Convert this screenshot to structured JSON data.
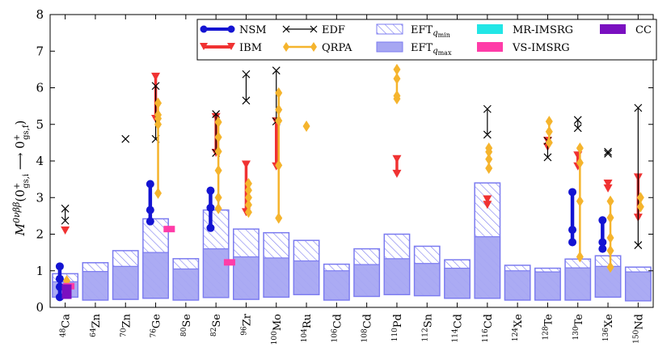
{
  "chart_data": {
    "type": "scatter",
    "title": "",
    "xlabel": "",
    "ylabel": "M^{0νββ}(0⁺gs,i → 0⁺gs,f)",
    "ylabel_parts": {
      "main": "M",
      "sup": "0νββ",
      "arg_open": "(0",
      "sup1": "+",
      "sub1": "gs,i",
      "arrow": " ⟶ 0",
      "sup2": "+",
      "sub2": "gs,f",
      "arg_close": ")"
    },
    "ylim": [
      0,
      8
    ],
    "yticks": [
      "0",
      "1",
      "2",
      "3",
      "4",
      "5",
      "6",
      "7",
      "8"
    ],
    "grid": false,
    "legend_position": "top-right",
    "colors": {
      "NSM": "#1414d2",
      "IBM": "#f03232",
      "EDF": "#000000",
      "QRPA": "#f5b42d",
      "EFT_box": "#7b7bf0",
      "EFT_fill": "#a7a7f2",
      "MR-IMSRG": "#22e6e6",
      "VS-IMSRG": "#ff3ca8",
      "CC": "#7a10c0"
    },
    "legend": [
      {
        "key": "NSM",
        "label": "NSM"
      },
      {
        "key": "IBM",
        "label": "IBM"
      },
      {
        "key": "EDF",
        "label": "EDF"
      },
      {
        "key": "QRPA",
        "label": "QRPA"
      },
      {
        "key": "EFTmin",
        "label": "EFT",
        "sub": "q",
        "subsub": "min"
      },
      {
        "key": "EFTmax",
        "label": "EFT",
        "sub": "q",
        "subsub": "max"
      },
      {
        "key": "MR-IMSRG",
        "label": "MR-IMSRG"
      },
      {
        "key": "VS-IMSRG",
        "label": "VS-IMSRG"
      },
      {
        "key": "CC",
        "label": "CC"
      }
    ],
    "categories": [
      {
        "mass": "48",
        "el": "Ca"
      },
      {
        "mass": "64",
        "el": "Zn"
      },
      {
        "mass": "70",
        "el": "Zn"
      },
      {
        "mass": "76",
        "el": "Ge"
      },
      {
        "mass": "80",
        "el": "Se"
      },
      {
        "mass": "82",
        "el": "Se"
      },
      {
        "mass": "96",
        "el": "Zr"
      },
      {
        "mass": "100",
        "el": "Mo"
      },
      {
        "mass": "104",
        "el": "Ru"
      },
      {
        "mass": "106",
        "el": "Cd"
      },
      {
        "mass": "108",
        "el": "Cd"
      },
      {
        "mass": "110",
        "el": "Pd"
      },
      {
        "mass": "112",
        "el": "Sn"
      },
      {
        "mass": "114",
        "el": "Cd"
      },
      {
        "mass": "116",
        "el": "Cd"
      },
      {
        "mass": "124",
        "el": "Xe"
      },
      {
        "mass": "128",
        "el": "Te"
      },
      {
        "mass": "130",
        "el": "Te"
      },
      {
        "mass": "136",
        "el": "Xe"
      },
      {
        "mass": "150",
        "el": "Nd"
      }
    ],
    "eft_qmin": [
      [
        0.28,
        0.92
      ],
      [
        0.2,
        1.22
      ],
      [
        0.22,
        1.55
      ],
      [
        0.25,
        2.42
      ],
      [
        0.2,
        1.33
      ],
      [
        0.27,
        2.66
      ],
      [
        0.22,
        2.14
      ],
      [
        0.28,
        2.04
      ],
      [
        0.35,
        1.83
      ],
      [
        0.2,
        1.18
      ],
      [
        0.3,
        1.6
      ],
      [
        0.35,
        2.0
      ],
      [
        0.32,
        1.67
      ],
      [
        0.25,
        1.3
      ],
      [
        0.25,
        3.4
      ],
      [
        0.2,
        1.15
      ],
      [
        0.2,
        1.07
      ],
      [
        0.2,
        1.32
      ],
      [
        0.28,
        1.41
      ],
      [
        0.18,
        1.1
      ]
    ],
    "eft_qmax": [
      [
        0.28,
        0.7
      ],
      [
        0.2,
        0.98
      ],
      [
        0.22,
        1.12
      ],
      [
        0.25,
        1.5
      ],
      [
        0.2,
        1.05
      ],
      [
        0.27,
        1.6
      ],
      [
        0.22,
        1.38
      ],
      [
        0.28,
        1.35
      ],
      [
        0.35,
        1.27
      ],
      [
        0.2,
        1.0
      ],
      [
        0.3,
        1.17
      ],
      [
        0.35,
        1.33
      ],
      [
        0.32,
        1.2
      ],
      [
        0.25,
        1.07
      ],
      [
        0.25,
        1.93
      ],
      [
        0.2,
        1.0
      ],
      [
        0.2,
        0.97
      ],
      [
        0.2,
        1.08
      ],
      [
        0.28,
        1.12
      ],
      [
        0.18,
        0.97
      ]
    ],
    "series": [
      {
        "name": "NSM",
        "points": [
          {
            "cat": 0,
            "off": -0.18,
            "values": [
              0.28,
              0.56,
              0.78,
              1.12
            ]
          },
          {
            "cat": 3,
            "off": -0.18,
            "values": [
              2.35,
              2.66,
              3.37
            ]
          },
          {
            "cat": 5,
            "off": -0.18,
            "values": [
              2.17,
              2.72,
              3.19
            ]
          },
          {
            "cat": 17,
            "off": -0.18,
            "values": [
              1.78,
              2.12,
              3.15
            ]
          },
          {
            "cat": 18,
            "off": -0.18,
            "values": [
              1.6,
              1.78,
              2.38
            ]
          }
        ]
      },
      {
        "name": "IBM",
        "points": [
          {
            "cat": 0,
            "off": 0.0,
            "values": [
              2.1
            ]
          },
          {
            "cat": 3,
            "off": 0.0,
            "values": [
              5.15,
              6.3
            ]
          },
          {
            "cat": 5,
            "off": 0.0,
            "values": [
              4.22,
              5.2
            ]
          },
          {
            "cat": 6,
            "off": 0.0,
            "values": [
              2.6,
              3.9
            ]
          },
          {
            "cat": 7,
            "off": 0.0,
            "values": [
              3.85,
              5.08
            ]
          },
          {
            "cat": 11,
            "off": 0.0,
            "values": [
              3.65,
              4.05
            ]
          },
          {
            "cat": 14,
            "off": 0.0,
            "values": [
              2.8,
              2.95
            ]
          },
          {
            "cat": 16,
            "off": 0.0,
            "values": [
              4.38,
              4.55
            ]
          },
          {
            "cat": 17,
            "off": 0.0,
            "values": [
              3.85,
              4.15
            ]
          },
          {
            "cat": 18,
            "off": 0.0,
            "values": [
              3.25,
              3.38
            ]
          },
          {
            "cat": 19,
            "off": 0.0,
            "values": [
              2.45,
              3.55
            ]
          }
        ]
      },
      {
        "name": "EDF",
        "points": [
          {
            "cat": 0,
            "off": 0.0,
            "values": [
              2.37,
              2.7
            ]
          },
          {
            "cat": 2,
            "off": 0.0,
            "values": [
              4.6
            ]
          },
          {
            "cat": 3,
            "off": 0.0,
            "values": [
              4.6,
              6.05
            ]
          },
          {
            "cat": 5,
            "off": 0.0,
            "values": [
              4.22,
              5.28
            ]
          },
          {
            "cat": 6,
            "off": 0.0,
            "values": [
              5.65,
              6.37
            ]
          },
          {
            "cat": 7,
            "off": 0.0,
            "values": [
              5.08,
              6.47
            ]
          },
          {
            "cat": 14,
            "off": 0.0,
            "values": [
              4.72,
              5.42
            ]
          },
          {
            "cat": 16,
            "off": 0.0,
            "values": [
              4.1,
              4.55
            ]
          },
          {
            "cat": 17,
            "off": 0.0,
            "values": [
              4.9,
              5.12
            ]
          },
          {
            "cat": 18,
            "off": 0.0,
            "values": [
              4.2,
              4.25
            ]
          },
          {
            "cat": 19,
            "off": 0.0,
            "values": [
              1.7,
              5.45
            ]
          }
        ]
      },
      {
        "name": "QRPA",
        "points": [
          {
            "cat": 0,
            "off": 0.05,
            "values": [
              0.54,
              0.6,
              0.73
            ]
          },
          {
            "cat": 3,
            "off": 0.08,
            "values": [
              3.12,
              5.0,
              5.16,
              5.26,
              5.58
            ]
          },
          {
            "cat": 5,
            "off": 0.08,
            "values": [
              2.7,
              3.0,
              3.74,
              4.26,
              4.65,
              5.06
            ]
          },
          {
            "cat": 6,
            "off": 0.08,
            "values": [
              2.6,
              2.8,
              3.0,
              3.2,
              3.38
            ]
          },
          {
            "cat": 7,
            "off": 0.08,
            "values": [
              2.44,
              3.88,
              5.1,
              5.4,
              5.86
            ]
          },
          {
            "cat": 8,
            "off": 0.0,
            "values": [
              4.95
            ]
          },
          {
            "cat": 11,
            "off": 0.0,
            "values": [
              5.7,
              5.78,
              6.25,
              6.5
            ]
          },
          {
            "cat": 14,
            "off": 0.05,
            "values": [
              3.8,
              4.05,
              4.25,
              4.35
            ]
          },
          {
            "cat": 16,
            "off": 0.05,
            "values": [
              4.5,
              4.8,
              5.08
            ]
          },
          {
            "cat": 17,
            "off": 0.07,
            "values": [
              1.38,
              2.9,
              3.95,
              4.35
            ]
          },
          {
            "cat": 18,
            "off": 0.08,
            "values": [
              1.1,
              1.55,
              1.9,
              2.45,
              2.9
            ]
          },
          {
            "cat": 19,
            "off": 0.08,
            "values": [
              2.75,
              3.0
            ]
          }
        ]
      },
      {
        "name": "MR-IMSRG",
        "points": [
          {
            "cat": 0,
            "off": 0.12,
            "values": [
              0.6
            ]
          }
        ]
      },
      {
        "name": "VS-IMSRG",
        "points": [
          {
            "cat": 0,
            "off": 0.12,
            "values": [
              0.58
            ]
          },
          {
            "cat": 3,
            "off": 0.45,
            "values": [
              2.14
            ]
          },
          {
            "cat": 5,
            "off": 0.45,
            "values": [
              1.23
            ]
          }
        ]
      },
      {
        "name": "CC",
        "points": [
          {
            "cat": 0,
            "off": 0.05,
            "values": [
              0.43
            ]
          }
        ]
      }
    ]
  }
}
